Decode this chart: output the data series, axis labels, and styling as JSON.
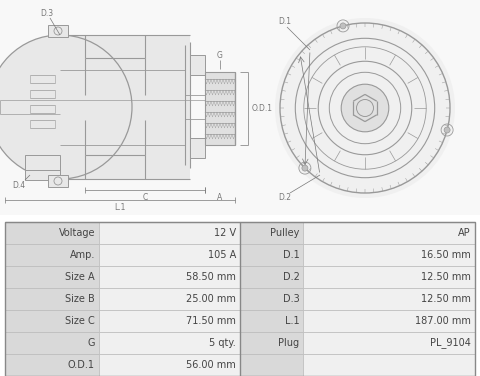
{
  "table_rows": [
    [
      "Voltage",
      "12 V",
      "Pulley",
      "AP"
    ],
    [
      "Amp.",
      "105 A",
      "D.1",
      "16.50 mm"
    ],
    [
      "Size A",
      "58.50 mm",
      "D.2",
      "12.50 mm"
    ],
    [
      "Size B",
      "25.00 mm",
      "D.3",
      "12.50 mm"
    ],
    [
      "Size C",
      "71.50 mm",
      "L.1",
      "187.00 mm"
    ],
    [
      "G",
      "5 qty.",
      "Plug",
      "PL_9104"
    ],
    [
      "O.D.1",
      "56.00 mm",
      "",
      ""
    ]
  ],
  "label_bg": "#d9d9d9",
  "value_bg": "#f0f0f0",
  "border_color": "#bbbbbb",
  "text_color": "#444444",
  "fig_bg": "#ffffff",
  "line_color": "#999999",
  "dim_color": "#777777",
  "font_size": 7.0
}
